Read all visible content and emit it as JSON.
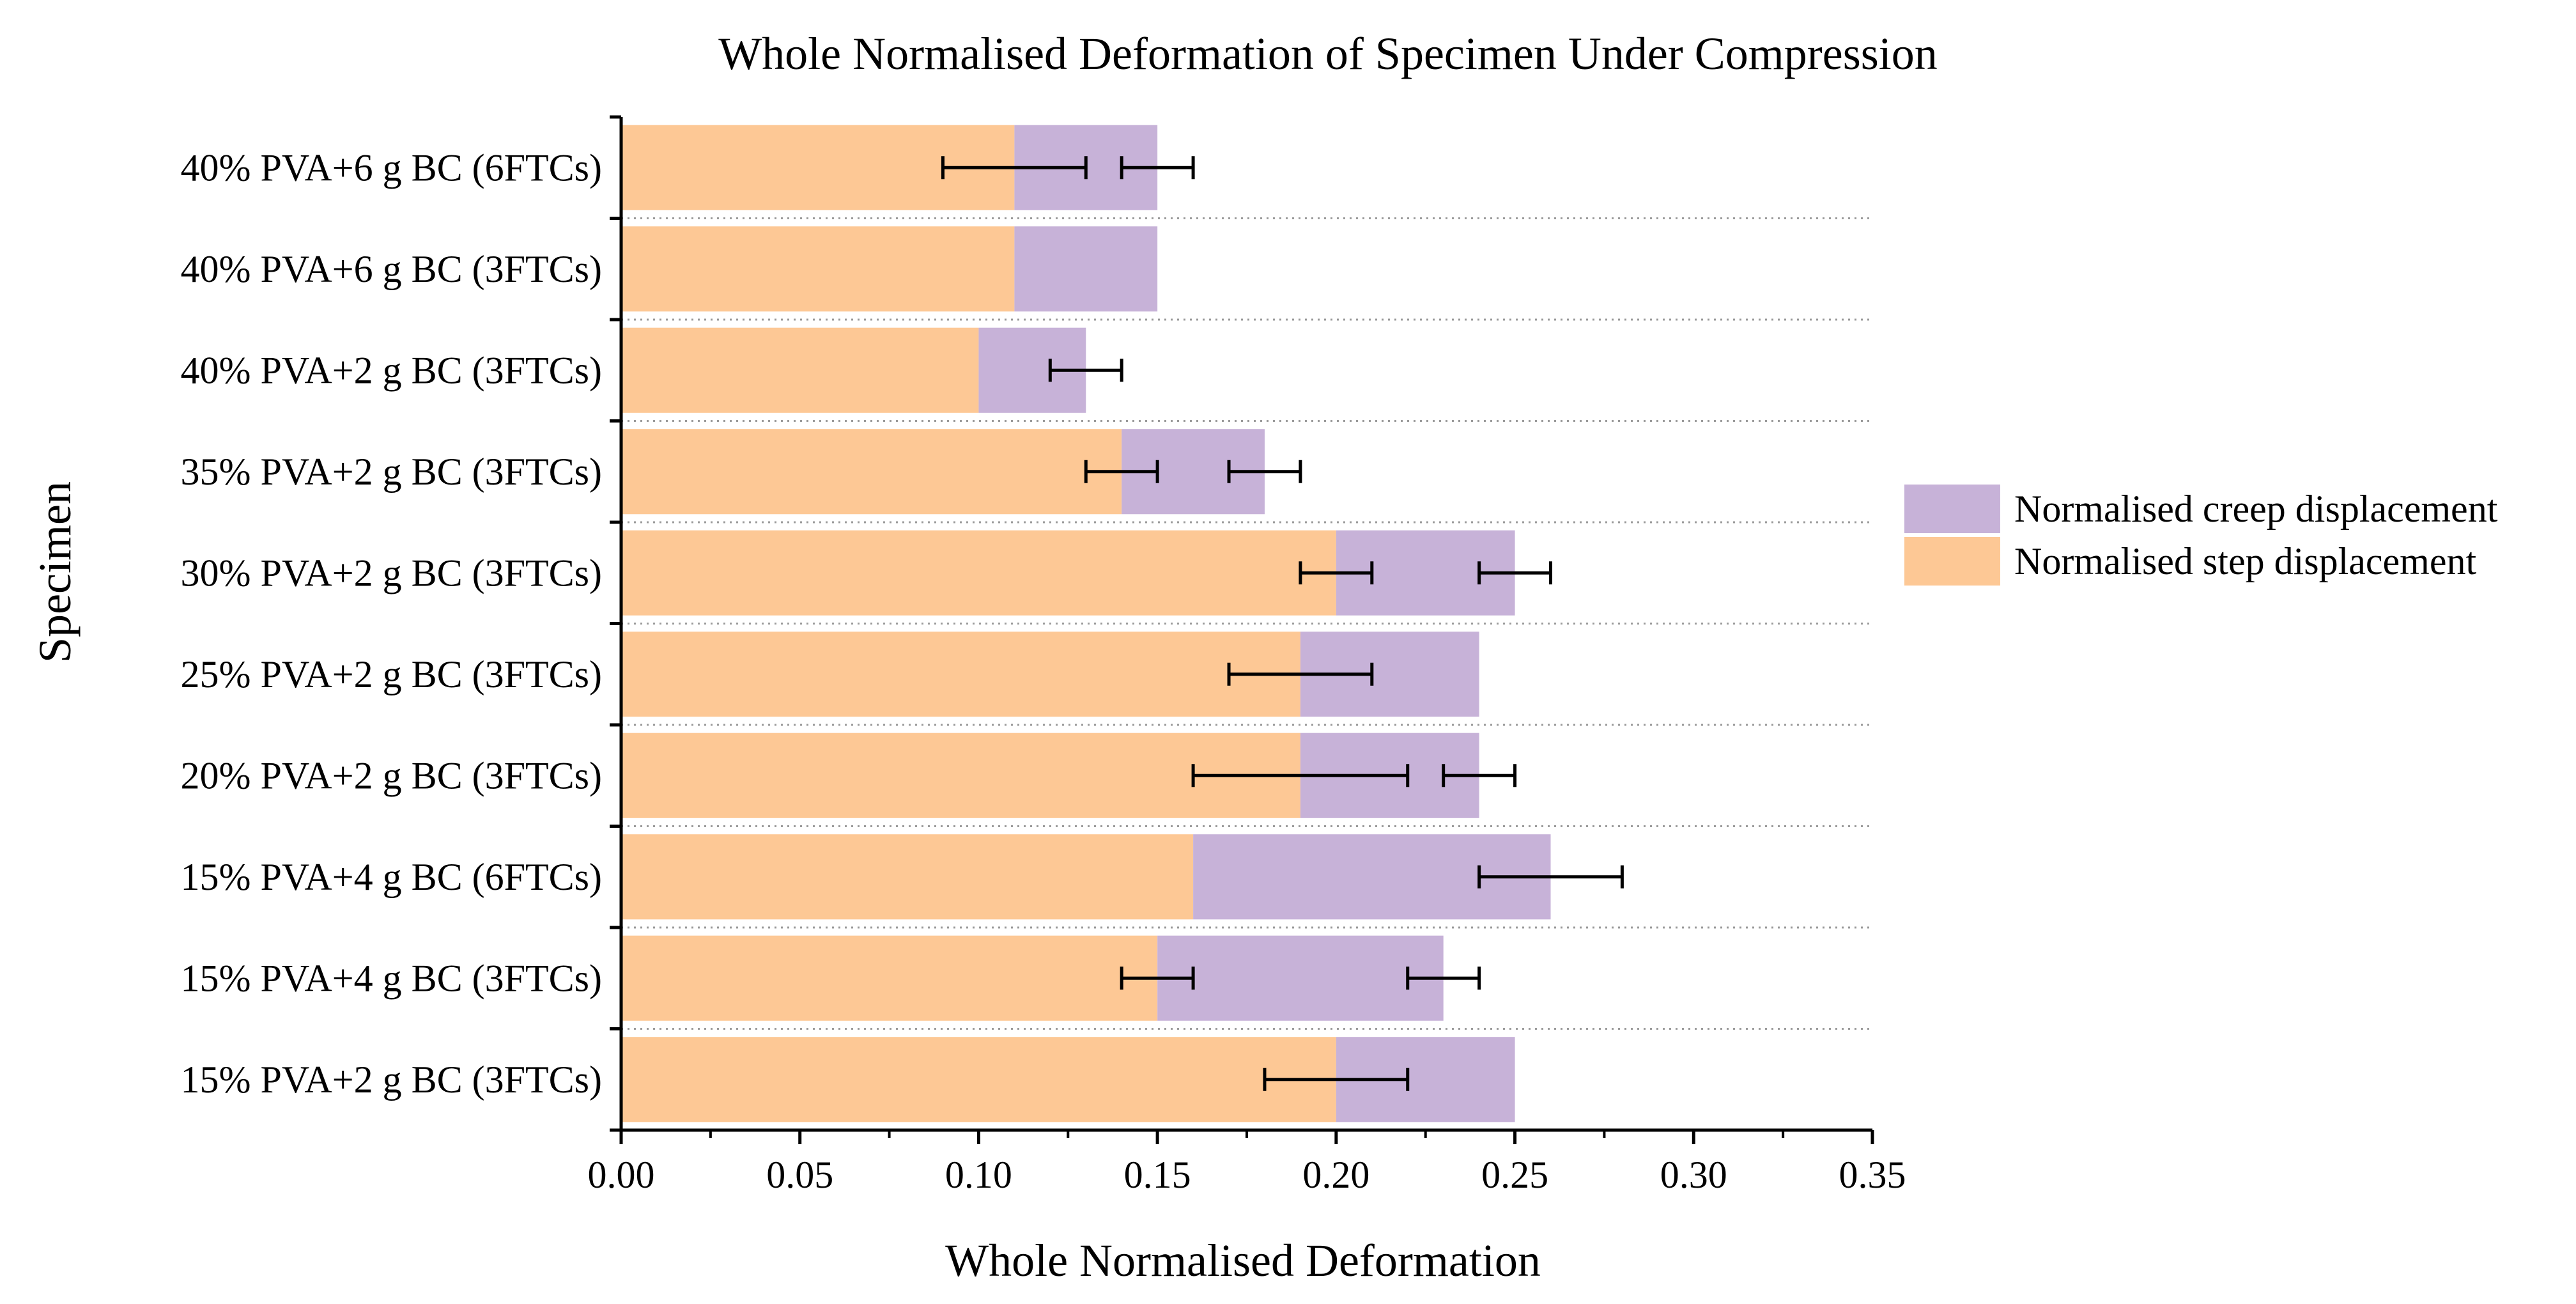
{
  "chart_data": {
    "type": "bar",
    "orientation": "horizontal",
    "stacked": true,
    "title": "Whole Normalised Deformation of Specimen Under Compression",
    "xlabel": "Whole Normalised Deformation",
    "ylabel": "Specimen",
    "xlim": [
      0,
      0.35
    ],
    "xticks": [
      "0.00",
      "0.05",
      "0.10",
      "0.15",
      "0.20",
      "0.25",
      "0.30",
      "0.35"
    ],
    "grid": "horizontal dotted",
    "legend_position": "right",
    "categories": [
      "15% PVA+2 g BC (3FTCs)",
      "15% PVA+4 g BC (3FTCs)",
      "15% PVA+4 g BC (6FTCs)",
      "20% PVA+2 g BC (3FTCs)",
      "25% PVA+2 g BC (3FTCs)",
      "30% PVA+2 g BC (3FTCs)",
      "35% PVA+2 g BC (3FTCs)",
      "40% PVA+2 g BC (3FTCs)",
      "40% PVA+6 g BC (3FTCs)",
      "40% PVA+6 g BC (6FTCs)"
    ],
    "series": [
      {
        "name": "Normalised step displacement",
        "color": "#FDC895",
        "values": [
          0.2,
          0.15,
          0.16,
          0.19,
          0.19,
          0.2,
          0.14,
          0.1,
          0.11,
          0.11
        ],
        "error": [
          0.02,
          0.01,
          null,
          0.03,
          0.02,
          0.01,
          0.01,
          null,
          null,
          0.02
        ]
      },
      {
        "name": "Normalised creep displacement",
        "color": "#C7B2D8",
        "values": [
          0.05,
          0.08,
          0.1,
          0.05,
          0.05,
          0.05,
          0.04,
          0.03,
          0.04,
          0.04
        ],
        "error": [
          null,
          0.01,
          0.02,
          0.01,
          null,
          0.01,
          0.01,
          0.01,
          null,
          0.01
        ]
      }
    ],
    "legend": [
      {
        "label": "Normalised creep displacement",
        "color": "#C7B2D8"
      },
      {
        "label": "Normalised step displacement",
        "color": "#FDC895"
      }
    ]
  }
}
